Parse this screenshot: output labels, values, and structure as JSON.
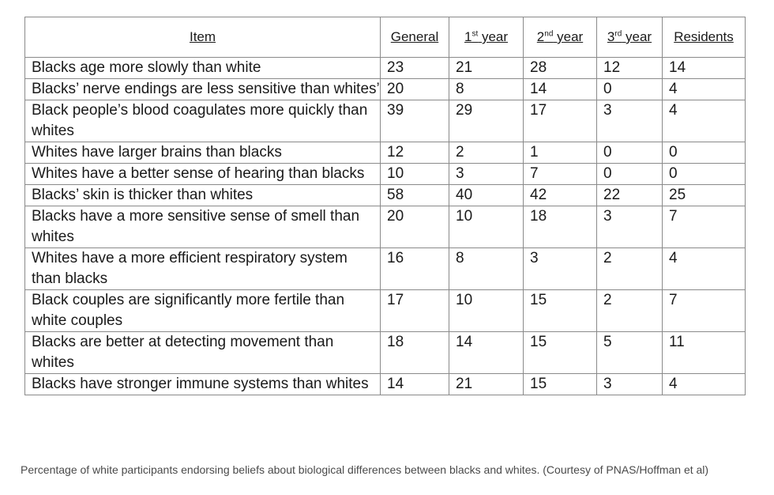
{
  "table": {
    "headers": {
      "item": "Item",
      "general": "General",
      "y1_num": "1",
      "y1_sup": "st",
      "y1_rest": " year",
      "y2_num": "2",
      "y2_sup": "nd",
      "y2_rest": " year",
      "y3_num": "3",
      "y3_sup": "rd",
      "y3_rest": " year",
      "residents": "Residents"
    },
    "rows": [
      {
        "item": "Blacks age more slowly than white",
        "general": "23",
        "y1": "21",
        "y2": "28",
        "y3": "12",
        "residents": "14"
      },
      {
        "item": "Blacks’ nerve endings are less sensitive than whites’",
        "general": "20",
        "y1": "8",
        "y2": "14",
        "y3": "0",
        "residents": "4"
      },
      {
        "item": "Black people’s blood coagulates more quickly than whites",
        "general": "39",
        "y1": "29",
        "y2": "17",
        "y3": "3",
        "residents": "4"
      },
      {
        "item": "Whites have larger brains than blacks",
        "general": "12",
        "y1": "2",
        "y2": "1",
        "y3": "0",
        "residents": "0"
      },
      {
        "item": "Whites have a better sense of hearing than blacks",
        "general": "10",
        "y1": "3",
        "y2": "7",
        "y3": "0",
        "residents": "0"
      },
      {
        "item": "Blacks’ skin is thicker than whites",
        "general": "58",
        "y1": "40",
        "y2": "42",
        "y3": "22",
        "residents": "25"
      },
      {
        "item": "Blacks have a more sensitive sense of smell than whites",
        "general": "20",
        "y1": "10",
        "y2": "18",
        "y3": "3",
        "residents": "7"
      },
      {
        "item": "Whites have a more efficient respiratory system than blacks",
        "general": "16",
        "y1": "8",
        "y2": "3",
        "y3": "2",
        "residents": "4"
      },
      {
        "item": "Black couples are significantly more fertile than white couples",
        "general": "17",
        "y1": "10",
        "y2": "15",
        "y3": "2",
        "residents": "7"
      },
      {
        "item": "Blacks are better at detecting movement than whites",
        "general": "18",
        "y1": "14",
        "y2": "15",
        "y3": "5",
        "residents": "11"
      },
      {
        "item": "Blacks have stronger immune systems than whites",
        "general": "14",
        "y1": "21",
        "y2": "15",
        "y3": "3",
        "residents": "4"
      }
    ]
  },
  "caption": "Percentage of white participants endorsing beliefs about biological differences between blacks and whites. (Courtesy of PNAS/Hoffman et al)"
}
